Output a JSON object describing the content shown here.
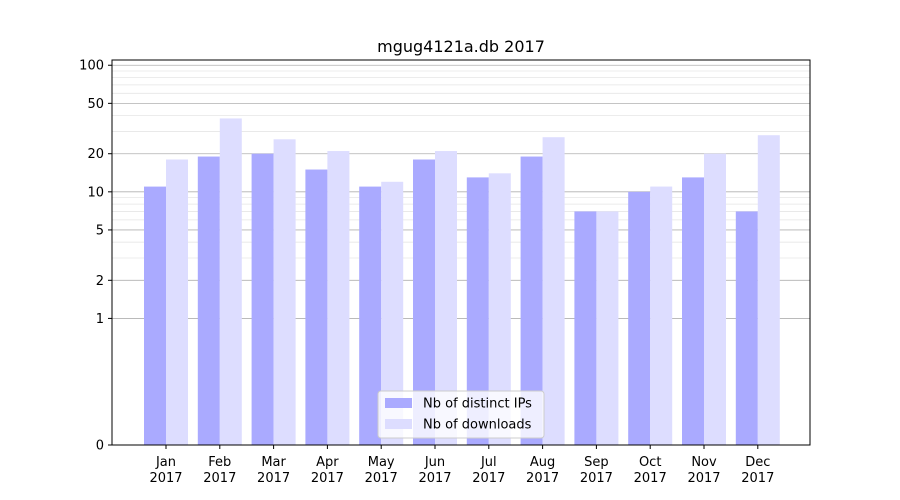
{
  "chart_data": {
    "type": "bar",
    "title": "mgug4121a.db 2017",
    "xlabel": "",
    "ylabel": "",
    "yscale": "symlog",
    "ylim": [
      0,
      110
    ],
    "grid": true,
    "legend_position": "bottom-center",
    "categories": [
      [
        "Jan",
        "2017"
      ],
      [
        "Feb",
        "2017"
      ],
      [
        "Mar",
        "2017"
      ],
      [
        "Apr",
        "2017"
      ],
      [
        "May",
        "2017"
      ],
      [
        "Jun",
        "2017"
      ],
      [
        "Jul",
        "2017"
      ],
      [
        "Aug",
        "2017"
      ],
      [
        "Sep",
        "2017"
      ],
      [
        "Oct",
        "2017"
      ],
      [
        "Nov",
        "2017"
      ],
      [
        "Dec",
        "2017"
      ]
    ],
    "yticks": [
      0,
      1,
      2,
      5,
      10,
      20,
      50,
      100
    ],
    "series": [
      {
        "name": "Nb of distinct IPs",
        "color": "#aaaaff",
        "values": [
          11,
          19,
          20,
          15,
          11,
          18,
          13,
          19,
          7,
          10,
          13,
          7
        ]
      },
      {
        "name": "Nb of downloads",
        "color": "#ddddff",
        "values": [
          18,
          38,
          26,
          21,
          12,
          21,
          14,
          27,
          7,
          11,
          20,
          28
        ]
      }
    ]
  }
}
